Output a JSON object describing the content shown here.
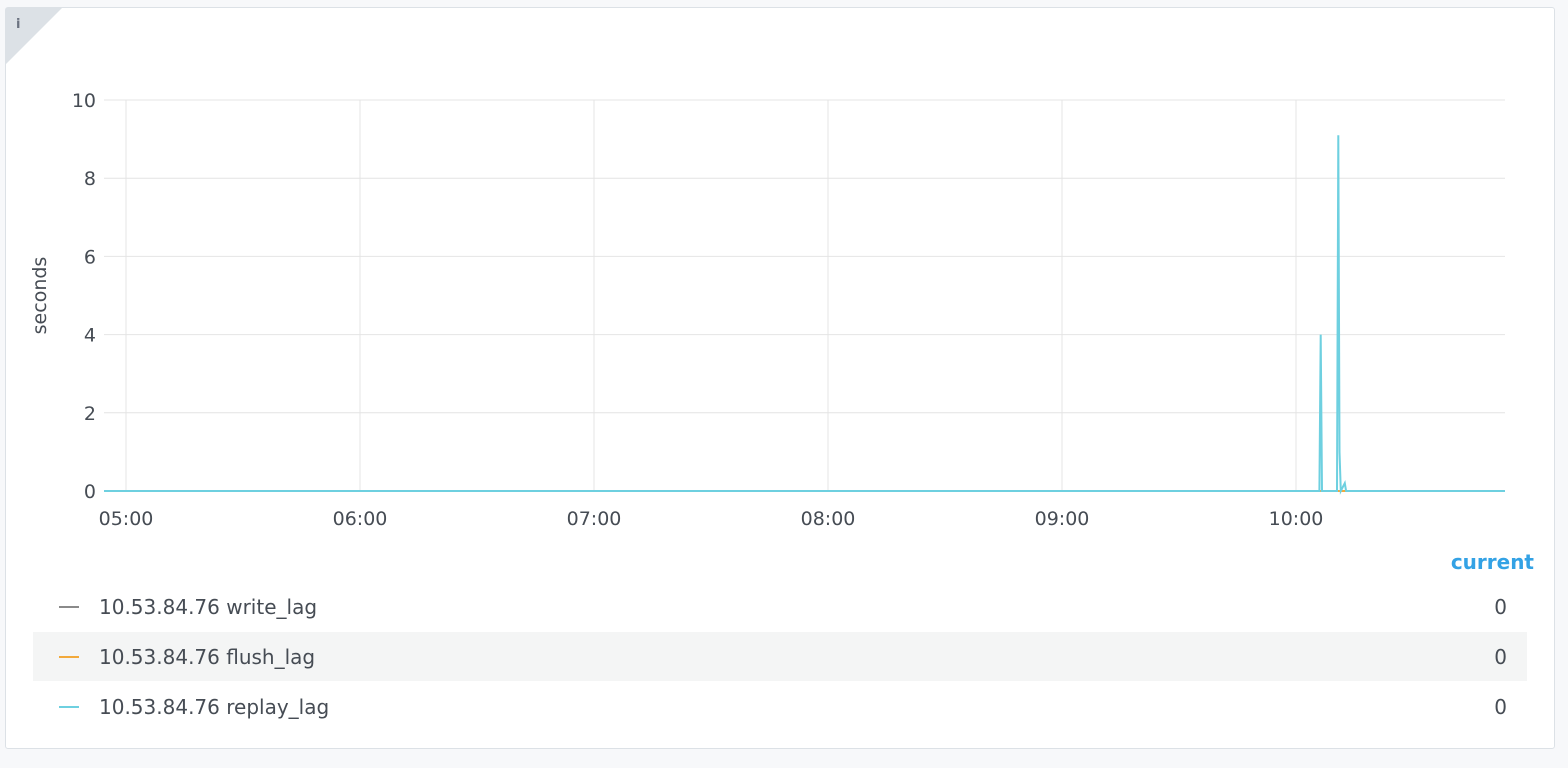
{
  "panel": {
    "info_icon": "info-icon"
  },
  "chart_data": {
    "type": "line",
    "title": "",
    "xlabel": "",
    "ylabel": "seconds",
    "ylim": [
      0,
      10
    ],
    "xlim": [
      "04:54",
      "10:54"
    ],
    "yticks": [
      "0",
      "2",
      "4",
      "6",
      "8",
      "10"
    ],
    "xticks": [
      "05:00",
      "06:00",
      "07:00",
      "08:00",
      "09:00",
      "10:00"
    ],
    "grid": true,
    "legend_placement": "bottom",
    "series": [
      {
        "name": "10.53.84.76 write_lag",
        "color": "#8a8a8a",
        "current": "0",
        "points": [
          [
            "04:54:00",
            0
          ],
          [
            "10:54:00",
            0
          ]
        ]
      },
      {
        "name": "10.53.84.76 flush_lag",
        "color": "#f2a93b",
        "current": "0",
        "points": [
          [
            "04:54:00",
            0
          ],
          [
            "10:54:00",
            0
          ]
        ]
      },
      {
        "name": "10.53.84.76 replay_lag",
        "color": "#6ed0e0",
        "current": "0",
        "points": [
          [
            "04:54:00",
            0
          ],
          [
            "10:06:00",
            0
          ],
          [
            "10:06:20",
            4.0
          ],
          [
            "10:06:40",
            0
          ],
          [
            "10:10:30",
            0
          ],
          [
            "10:10:50",
            9.1
          ],
          [
            "10:11:10",
            1.0
          ],
          [
            "10:11:30",
            0
          ],
          [
            "10:12:30",
            0.2
          ],
          [
            "10:12:50",
            0
          ],
          [
            "10:54:00",
            0
          ]
        ]
      }
    ]
  },
  "legend": {
    "current_header": "current"
  }
}
